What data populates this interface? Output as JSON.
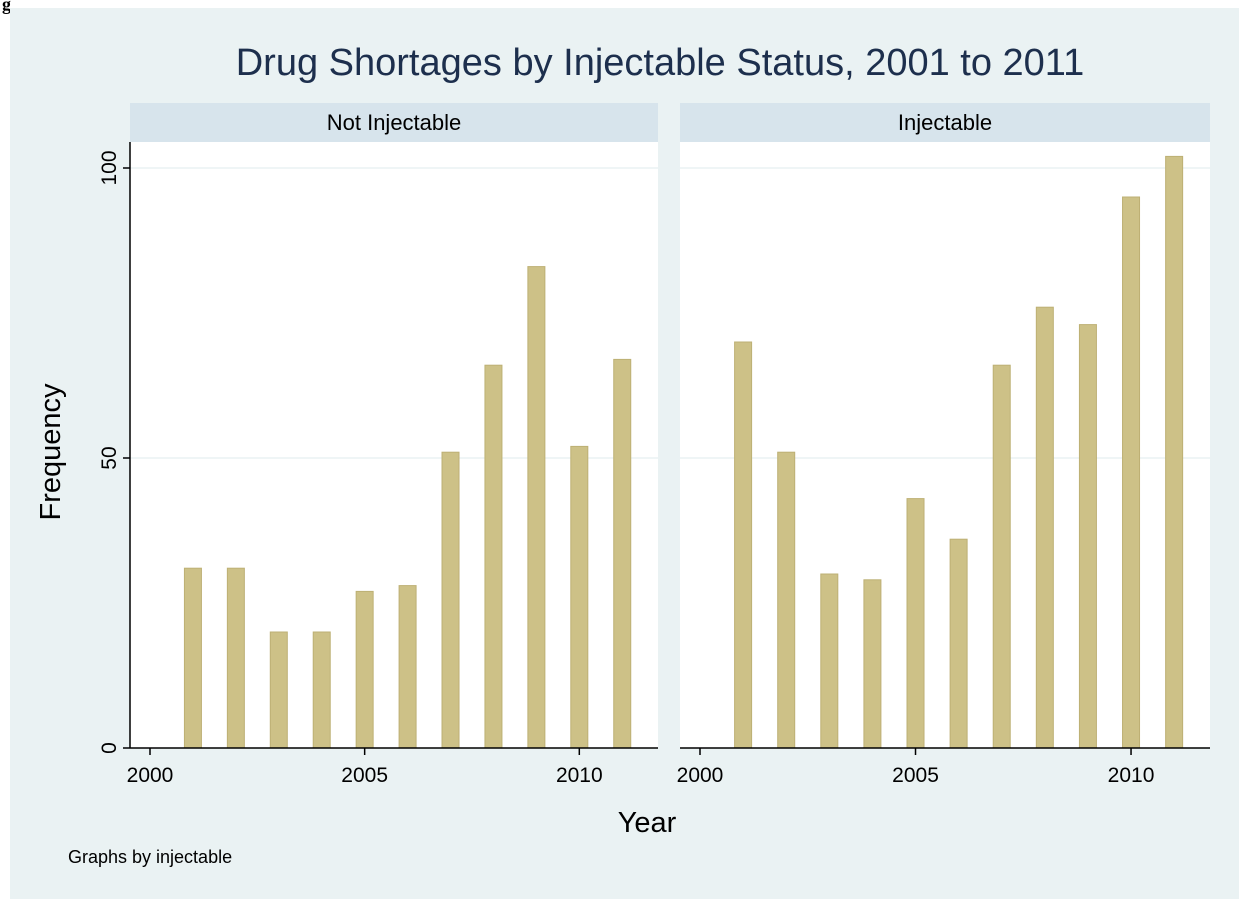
{
  "figure_label": "g",
  "chart_data": {
    "type": "bar",
    "title": "Drug Shortages by Injectable Status, 2001 to 2011",
    "xlabel": "Year",
    "ylabel": "Frequency",
    "note": "Graphs by injectable",
    "xlim": [
      2000,
      2011.6
    ],
    "ylim": [
      0,
      100
    ],
    "xticks": [
      2000,
      2005,
      2010
    ],
    "yticks": [
      0,
      50,
      100
    ],
    "grid": true,
    "panels": [
      {
        "name": "Not Injectable",
        "x": [
          2001,
          2002,
          2003,
          2004,
          2005,
          2006,
          2007,
          2008,
          2009,
          2010,
          2011
        ],
        "values": [
          31,
          31,
          20,
          20,
          27,
          28,
          51,
          66,
          83,
          52,
          67
        ]
      },
      {
        "name": "Injectable",
        "x": [
          2001,
          2002,
          2003,
          2004,
          2005,
          2006,
          2007,
          2008,
          2009,
          2010,
          2011
        ],
        "values": [
          70,
          51,
          30,
          29,
          43,
          36,
          66,
          76,
          73,
          95,
          102
        ]
      }
    ],
    "colors": {
      "background": "#eaf2f3",
      "panel": "#ffffff",
      "strip": "#d7e4ec",
      "bar": "#cdc187",
      "bar_edge": "#bdb074",
      "grid": "#eaf2f3",
      "axis": "#000000",
      "text": "#000000",
      "title": "#1d2f4d"
    }
  }
}
